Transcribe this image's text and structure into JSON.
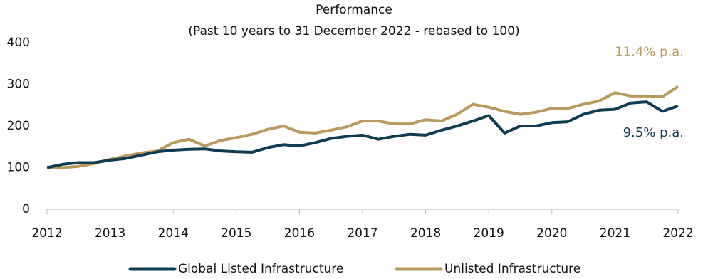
{
  "chart_data": {
    "type": "line",
    "title": "Performance",
    "subtitle": "(Past 10 years to 31 December 2022 - rebased to 100)",
    "x": [
      2012,
      2012.25,
      2012.5,
      2012.75,
      2013,
      2013.25,
      2013.5,
      2013.75,
      2014,
      2014.25,
      2014.5,
      2014.75,
      2015,
      2015.25,
      2015.5,
      2015.75,
      2016,
      2016.25,
      2016.5,
      2016.75,
      2017,
      2017.25,
      2017.5,
      2017.75,
      2018,
      2018.25,
      2018.5,
      2018.75,
      2019,
      2019.25,
      2019.5,
      2019.75,
      2020,
      2020.25,
      2020.5,
      2020.75,
      2021,
      2021.25,
      2021.5,
      2021.75,
      2022
    ],
    "series": [
      {
        "name": "Global Listed Infrastructure",
        "color": "#0e3c50",
        "annotation": "9.5% p.a.",
        "values": [
          100,
          108,
          112,
          112,
          118,
          122,
          130,
          138,
          142,
          144,
          145,
          140,
          138,
          137,
          148,
          155,
          152,
          160,
          170,
          175,
          178,
          168,
          175,
          180,
          178,
          190,
          200,
          212,
          225,
          183,
          200,
          200,
          208,
          210,
          228,
          238,
          240,
          255,
          258,
          235,
          248
        ]
      },
      {
        "name": "Unlisted Infrastructure",
        "color": "#b9995d",
        "annotation": "11.4% p.a.",
        "values": [
          100,
          100,
          103,
          110,
          120,
          128,
          135,
          140,
          160,
          168,
          152,
          165,
          172,
          180,
          192,
          200,
          185,
          183,
          190,
          198,
          212,
          212,
          205,
          205,
          215,
          212,
          228,
          252,
          245,
          235,
          228,
          233,
          242,
          242,
          252,
          260,
          280,
          272,
          272,
          270,
          295
        ]
      }
    ],
    "xlim": [
      2012,
      2022
    ],
    "xticks": [
      2012,
      2013,
      2014,
      2015,
      2016,
      2017,
      2018,
      2019,
      2020,
      2021,
      2022
    ],
    "ylim": [
      0,
      400
    ],
    "yticks": [
      0,
      100,
      200,
      300,
      400
    ],
    "grid": false,
    "legend": "bottom"
  }
}
